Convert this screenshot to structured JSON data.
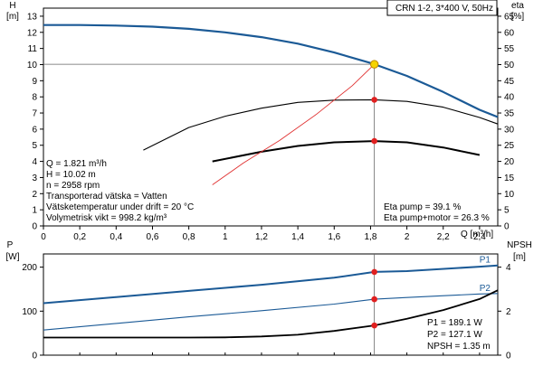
{
  "chart_data": [
    {
      "type": "line",
      "title": "CRN 1-2, 3*400 V, 50Hz",
      "xlabel": "Q [m³/h]",
      "ylabel_left": [
        "H",
        "[m]"
      ],
      "ylabel_right": [
        "eta",
        "[%]"
      ],
      "xlim": [
        0,
        2.5
      ],
      "ylim_left": [
        0,
        13.5
      ],
      "ylim_right": [
        0,
        67.5
      ],
      "x_ticks": [
        "0",
        "0,2",
        "0,4",
        "0,6",
        "0,8",
        "1",
        "1,2",
        "1,4",
        "1,6",
        "1,8",
        "2",
        "2,2",
        "2,4"
      ],
      "y_ticks_left": [
        "0",
        "1",
        "2",
        "3",
        "4",
        "5",
        "6",
        "7",
        "8",
        "9",
        "10",
        "11",
        "12",
        "13"
      ],
      "y_ticks_right": [
        "0",
        "5",
        "10",
        "15",
        "20",
        "25",
        "30",
        "35",
        "40",
        "45",
        "50",
        "55",
        "60",
        "65"
      ],
      "grid": false,
      "series": [
        {
          "id": "head",
          "axis": "left",
          "color": "#1b5a96",
          "x": [
            0,
            0.2,
            0.4,
            0.6,
            0.8,
            1.0,
            1.2,
            1.4,
            1.6,
            1.8,
            1.821,
            2.0,
            2.2,
            2.4,
            2.5
          ],
          "y": [
            12.45,
            12.45,
            12.42,
            12.35,
            12.22,
            12.0,
            11.7,
            11.3,
            10.75,
            10.1,
            10.02,
            9.3,
            8.3,
            7.2,
            6.75
          ]
        },
        {
          "id": "eta-pump",
          "axis": "right",
          "color": "#000000",
          "x": [
            0.55,
            0.8,
            1.0,
            1.2,
            1.4,
            1.6,
            1.821,
            2.0,
            2.2,
            2.4,
            2.5
          ],
          "y": [
            23.5,
            30.5,
            34.0,
            36.5,
            38.3,
            39.0,
            39.1,
            38.6,
            36.8,
            33.6,
            31.6
          ]
        },
        {
          "id": "eta-total",
          "axis": "right",
          "color": "#000000",
          "x": [
            0.93,
            1.2,
            1.4,
            1.6,
            1.821,
            2.0,
            2.2,
            2.4
          ],
          "y": [
            20.0,
            23.0,
            24.8,
            25.9,
            26.3,
            25.9,
            24.3,
            22.0
          ]
        },
        {
          "id": "system",
          "axis": "left",
          "color": "#e03030",
          "x": [
            0.93,
            1.1,
            1.3,
            1.5,
            1.7,
            1.821
          ],
          "y": [
            2.55,
            3.9,
            5.3,
            6.9,
            8.7,
            10.02
          ]
        }
      ],
      "operating_point": {
        "x": 1.821,
        "h": 10.02,
        "eta_pump": 39.1,
        "eta_total": 26.3
      },
      "info_lines": [
        "Q = 1.821 m³/h",
        "H = 10.02 m",
        "n = 2958 rpm",
        "Transporterad vätska = Vatten",
        "Vätsketemperatur under drift = 20 °C",
        "Volymetrisk vikt = 998.2 kg/m³"
      ],
      "eta_lines": [
        "Eta pump = 39.1 %",
        "Eta pump+motor = 26.3 %"
      ]
    },
    {
      "type": "line",
      "xlim": [
        0,
        2.5
      ],
      "ylabel_left": [
        "P",
        "[W]"
      ],
      "ylabel_right": [
        "NPSH",
        "[m]"
      ],
      "ylim_left": [
        0,
        230
      ],
      "ylim_right": [
        0,
        4.6
      ],
      "y_ticks_left": [
        "0",
        "100",
        "200"
      ],
      "y_ticks_right": [
        "0",
        "2",
        "4"
      ],
      "grid": false,
      "series": [
        {
          "id": "P1",
          "name": "P1",
          "axis": "left",
          "color": "#1b5a96",
          "x": [
            0,
            0.4,
            0.8,
            1.2,
            1.6,
            1.821,
            2.0,
            2.4,
            2.5
          ],
          "y": [
            118,
            132,
            146,
            160,
            176,
            189.1,
            191,
            201,
            204
          ]
        },
        {
          "id": "P2",
          "name": "P2",
          "axis": "left",
          "color": "#1b5a96",
          "x": [
            0,
            0.4,
            0.8,
            1.2,
            1.6,
            1.821,
            2.0,
            2.4,
            2.5
          ],
          "y": [
            57,
            72,
            87,
            101,
            116,
            127.1,
            131,
            139,
            140
          ]
        },
        {
          "id": "npsh",
          "axis": "right",
          "color": "#000000",
          "x": [
            0,
            0.4,
            0.8,
            1.0,
            1.2,
            1.4,
            1.6,
            1.821,
            2.0,
            2.2,
            2.4,
            2.5
          ],
          "y": [
            0.8,
            0.8,
            0.8,
            0.81,
            0.85,
            0.93,
            1.1,
            1.35,
            1.65,
            2.05,
            2.55,
            2.95
          ]
        }
      ],
      "operating_point": {
        "x": 1.821,
        "p1": 189.1,
        "p2": 127.1,
        "npsh": 1.35
      },
      "info_lines": [
        "P1 = 189.1 W",
        "P2 = 127.1 W",
        "NPSH = 1.35 m"
      ]
    }
  ]
}
